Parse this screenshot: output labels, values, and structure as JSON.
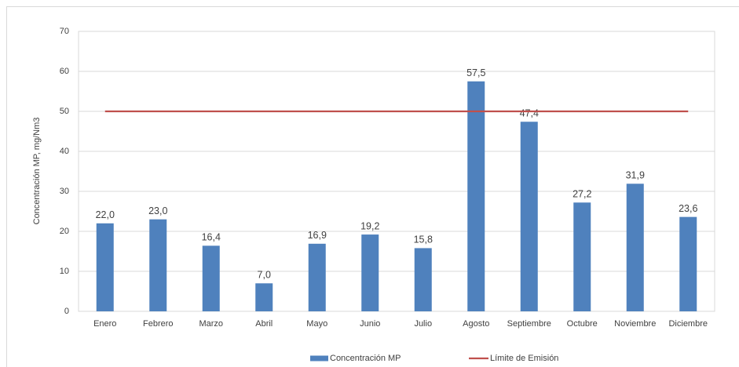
{
  "chart_data": {
    "type": "bar",
    "y_label": "Concentración MP, mg/Nm3",
    "categories": [
      "Enero",
      "Febrero",
      "Marzo",
      "Abril",
      "Mayo",
      "Junio",
      "Julio",
      "Agosto",
      "Septiembre",
      "Octubre",
      "Noviembre",
      "Diciembre"
    ],
    "series": [
      {
        "name": "Concentración MP",
        "type": "bar",
        "color": "#4f81bd",
        "values": [
          22.0,
          23.0,
          16.4,
          7.0,
          16.9,
          19.2,
          15.8,
          57.5,
          47.4,
          27.2,
          31.9,
          23.6
        ],
        "value_labels": [
          "22,0",
          "23,0",
          "16,4",
          "7,0",
          "16,9",
          "19,2",
          "15,8",
          "57,5",
          "47,4",
          "27,2",
          "31,9",
          "23,6"
        ]
      },
      {
        "name": "Límite de Emisión",
        "type": "line",
        "color": "#c0504d",
        "values": [
          50,
          50,
          50,
          50,
          50,
          50,
          50,
          50,
          50,
          50,
          50,
          50
        ]
      }
    ],
    "ylim": [
      0,
      70
    ],
    "yticks": [
      0,
      10,
      20,
      30,
      40,
      50,
      60,
      70
    ],
    "grid": true,
    "legend": "bottom"
  }
}
